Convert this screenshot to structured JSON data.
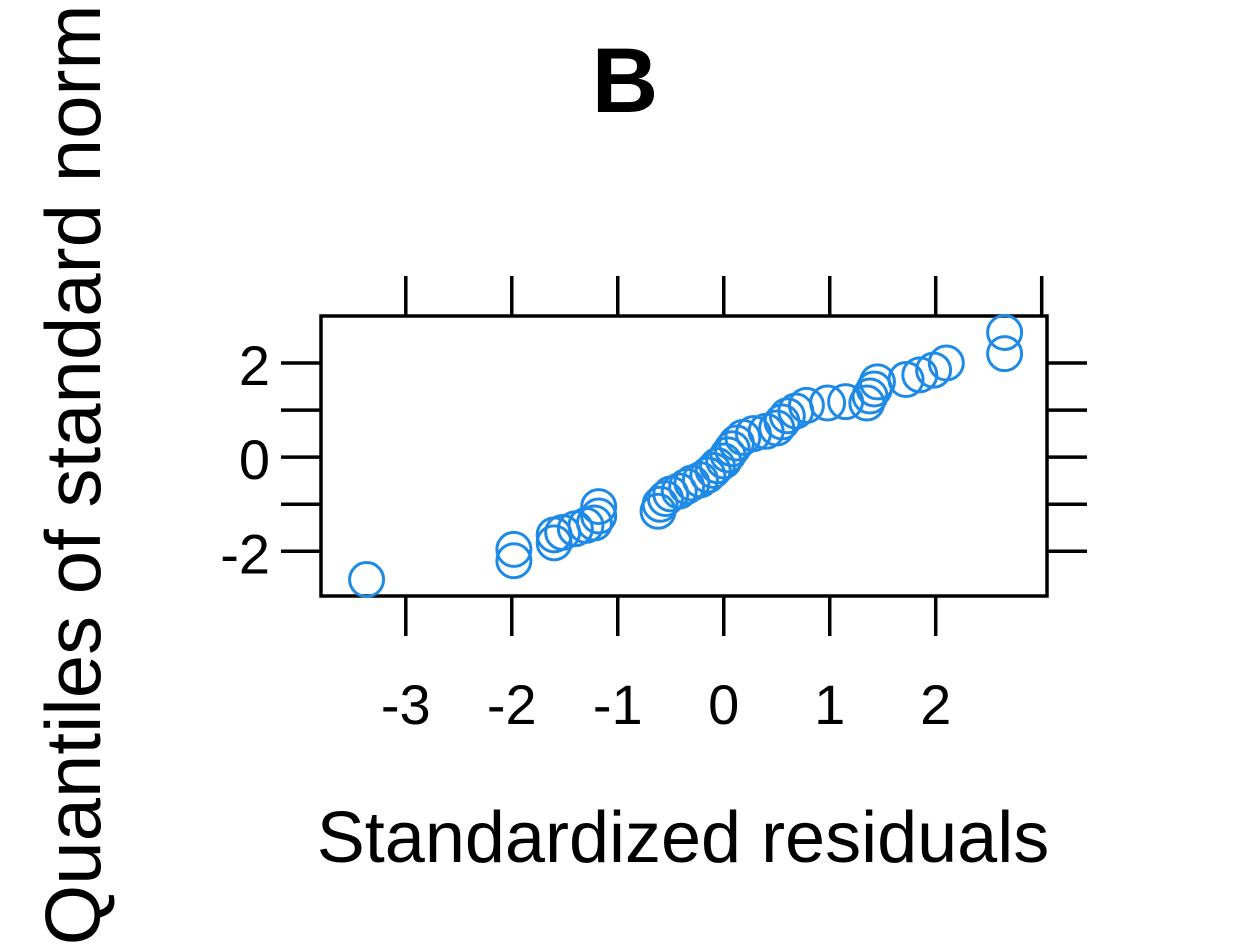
{
  "chart_data": {
    "type": "scatter",
    "title": "B",
    "xlabel": "Standardized residuals",
    "ylabel": "Quantiles of standard norm",
    "xlim": [
      -3.8,
      3.05
    ],
    "ylim": [
      -2.95,
      3.0
    ],
    "x_ticks": [
      -3,
      -2,
      -1,
      0,
      1,
      2
    ],
    "x_tick_labels": [
      "-3",
      "-2",
      "-1",
      "0",
      "1",
      "2"
    ],
    "y_ticks": [
      -2,
      0,
      2
    ],
    "y_tick_labels": [
      "-2",
      "0",
      "2"
    ],
    "y_minor_ticks": [
      -1,
      1
    ],
    "top_ticks": [
      -3,
      -2,
      -1,
      0,
      1,
      2,
      3
    ],
    "grid": false,
    "marker": "open-circle",
    "color": "#1f8ae6",
    "series": [
      {
        "points": [
          [
            -3.37,
            -2.6
          ],
          [
            -1.98,
            -2.2
          ],
          [
            -1.98,
            -1.96
          ],
          [
            -1.6,
            -1.82
          ],
          [
            -1.6,
            -1.65
          ],
          [
            -1.52,
            -1.6
          ],
          [
            -1.4,
            -1.52
          ],
          [
            -1.3,
            -1.45
          ],
          [
            -1.22,
            -1.4
          ],
          [
            -1.18,
            -1.25
          ],
          [
            -1.18,
            -1.05
          ],
          [
            -0.62,
            -1.15
          ],
          [
            -0.6,
            -1.0
          ],
          [
            -0.55,
            -0.88
          ],
          [
            -0.5,
            -0.78
          ],
          [
            -0.42,
            -0.72
          ],
          [
            -0.35,
            -0.62
          ],
          [
            -0.3,
            -0.55
          ],
          [
            -0.22,
            -0.48
          ],
          [
            -0.15,
            -0.38
          ],
          [
            -0.1,
            -0.28
          ],
          [
            -0.06,
            -0.18
          ],
          [
            0.0,
            -0.08
          ],
          [
            0.04,
            0.05
          ],
          [
            0.08,
            0.18
          ],
          [
            0.12,
            0.3
          ],
          [
            0.18,
            0.42
          ],
          [
            0.28,
            0.5
          ],
          [
            0.4,
            0.55
          ],
          [
            0.5,
            0.62
          ],
          [
            0.55,
            0.75
          ],
          [
            0.6,
            0.88
          ],
          [
            0.68,
            0.98
          ],
          [
            0.78,
            1.1
          ],
          [
            0.98,
            1.15
          ],
          [
            1.15,
            1.18
          ],
          [
            1.35,
            1.15
          ],
          [
            1.38,
            1.3
          ],
          [
            1.42,
            1.45
          ],
          [
            1.45,
            1.6
          ],
          [
            1.72,
            1.65
          ],
          [
            1.85,
            1.75
          ],
          [
            1.98,
            1.85
          ],
          [
            2.1,
            2.0
          ],
          [
            2.65,
            2.2
          ],
          [
            2.65,
            2.65
          ]
        ]
      }
    ]
  }
}
